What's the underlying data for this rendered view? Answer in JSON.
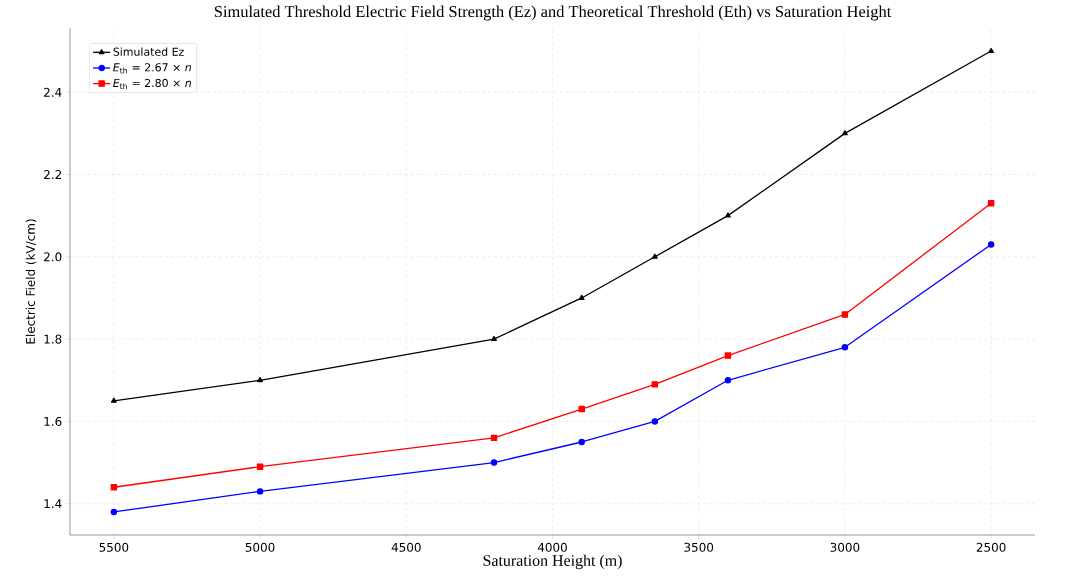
{
  "chart_data": {
    "type": "line",
    "title": "Simulated Threshold Electric Field Strength (Ez) and Theoretical Threshold (Eth) vs Saturation Height",
    "xlabel": "Saturation Height (m)",
    "ylabel": "Electric Field (kV/cm)",
    "x": [
      5500,
      5000,
      4200,
      3900,
      3650,
      3400,
      3000,
      2500
    ],
    "series": [
      {
        "name": "Simulated Ez",
        "color": "#000000",
        "marker": "triangle",
        "values": [
          1.65,
          1.7,
          1.8,
          1.9,
          2.0,
          2.1,
          2.3,
          2.5
        ]
      },
      {
        "name": "*E*$_{th}$ = 2.67 × *n*",
        "color": "#0000ff",
        "marker": "circle",
        "values": [
          1.38,
          1.43,
          1.5,
          1.55,
          1.6,
          1.7,
          1.78,
          2.03
        ]
      },
      {
        "name": "*E*$_{th}$ = 2.80 × *n*",
        "color": "#ff0000",
        "marker": "square",
        "values": [
          1.44,
          1.49,
          1.56,
          1.63,
          1.69,
          1.76,
          1.86,
          2.13
        ]
      }
    ],
    "xlim": [
      5650,
      2350
    ],
    "ylim": [
      1.324,
      2.556
    ],
    "xticks": [
      5500,
      5000,
      4500,
      4000,
      3500,
      3000,
      2500
    ],
    "yticks": [
      1.4,
      1.6,
      1.8,
      {
        "value": 2.0,
        "label": "2.0"
      },
      2.2,
      2.4
    ],
    "grid": true,
    "legend": "top left",
    "line_style": "solid"
  }
}
